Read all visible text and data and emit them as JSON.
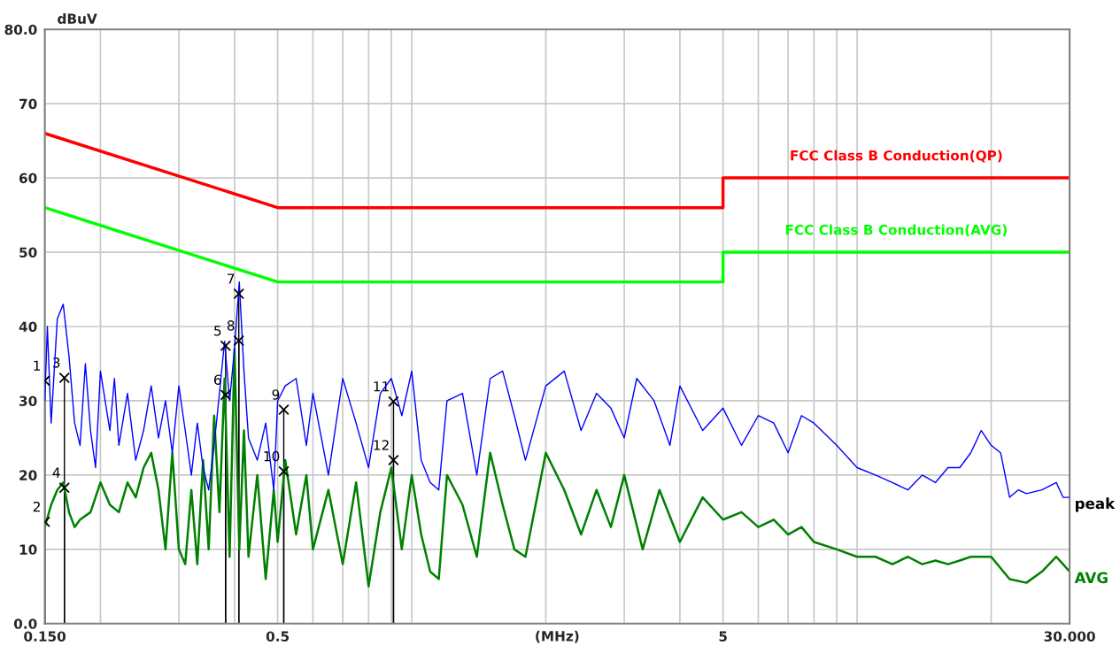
{
  "chart_data": {
    "type": "line",
    "xlabel": "(MHz)",
    "ylabel": "dBuV",
    "log": "x",
    "grid": true,
    "legend": false,
    "marker": "none",
    "xlim": [
      0.15,
      30
    ],
    "ylim": [
      0,
      80
    ],
    "xticks": [
      {
        "value": 0.15,
        "label": "0.150"
      },
      {
        "value": 0.2,
        "label": null
      },
      {
        "value": 0.3,
        "label": null
      },
      {
        "value": 0.4,
        "label": null
      },
      0.5,
      {
        "value": 0.6,
        "label": null
      },
      {
        "value": 0.7,
        "label": null
      },
      {
        "value": 0.8,
        "label": null
      },
      {
        "value": 0.9,
        "label": null
      },
      {
        "value": 1,
        "label": null
      },
      {
        "value": 2,
        "label": null
      },
      {
        "value": 3,
        "label": null
      },
      {
        "value": 4,
        "label": null
      },
      5,
      {
        "value": 6,
        "label": null
      },
      {
        "value": 7,
        "label": null
      },
      {
        "value": 8,
        "label": null
      },
      {
        "value": 9,
        "label": null
      },
      {
        "value": 10,
        "label": null
      },
      {
        "value": 20,
        "label": null
      },
      {
        "value": 30,
        "label": "30.000"
      }
    ],
    "yticks": [
      {
        "value": 0,
        "label": "0.0"
      },
      10,
      20,
      30,
      40,
      50,
      60,
      70,
      {
        "value": 80,
        "label": "80.0"
      }
    ],
    "series": [
      {
        "name": "FCC Class B Conduction(QP)",
        "color": "#ff0000",
        "x": [
          0.15,
          0.5,
          5,
          5,
          30
        ],
        "values": [
          66,
          56,
          56,
          60,
          60
        ]
      },
      {
        "name": "FCC Class B Conduction(AVG)",
        "color": "#00ff00",
        "x": [
          0.15,
          0.5,
          5,
          5,
          30
        ],
        "values": [
          56,
          46,
          46,
          50,
          50
        ]
      },
      {
        "name": "peak",
        "color": "#0000ff",
        "x": [
          0.15,
          0.152,
          0.155,
          0.16,
          0.165,
          0.17,
          0.175,
          0.18,
          0.185,
          0.19,
          0.195,
          0.2,
          0.21,
          0.215,
          0.22,
          0.23,
          0.24,
          0.25,
          0.26,
          0.27,
          0.28,
          0.29,
          0.3,
          0.31,
          0.32,
          0.33,
          0.34,
          0.35,
          0.36,
          0.37,
          0.38,
          0.39,
          0.4,
          0.41,
          0.42,
          0.43,
          0.45,
          0.47,
          0.49,
          0.5,
          0.52,
          0.55,
          0.58,
          0.6,
          0.65,
          0.7,
          0.75,
          0.8,
          0.85,
          0.9,
          0.95,
          1.0,
          1.05,
          1.1,
          1.15,
          1.2,
          1.3,
          1.4,
          1.5,
          1.6,
          1.7,
          1.8,
          2.0,
          2.2,
          2.4,
          2.6,
          2.8,
          3.0,
          3.2,
          3.5,
          3.8,
          4.0,
          4.5,
          5.0,
          5.5,
          6.0,
          6.5,
          7.0,
          7.5,
          8.0,
          9.0,
          10,
          11,
          12,
          13,
          14,
          15,
          16,
          17,
          18,
          19,
          20,
          21,
          22,
          23,
          24,
          26,
          28,
          29,
          30
        ],
        "values": [
          30,
          40,
          27,
          41,
          43,
          36,
          27,
          24,
          35,
          26,
          21,
          34,
          26,
          33,
          24,
          31,
          22,
          26,
          32,
          25,
          30,
          23,
          32,
          26,
          20,
          27,
          21,
          18,
          24,
          31,
          38,
          30,
          37,
          46,
          34,
          25,
          22,
          27,
          18,
          30,
          32,
          33,
          24,
          31,
          20,
          33,
          27,
          21,
          31,
          33,
          28,
          34,
          22,
          19,
          18,
          30,
          31,
          20,
          33,
          34,
          28,
          22,
          32,
          34,
          26,
          31,
          29,
          25,
          33,
          30,
          24,
          32,
          26,
          29,
          24,
          28,
          27,
          23,
          28,
          27,
          24,
          21,
          20,
          19,
          18,
          20,
          19,
          21,
          21,
          23,
          26,
          24,
          23,
          17,
          18,
          17.5,
          18,
          19,
          17,
          17
        ]
      },
      {
        "name": "AVG",
        "color": "#008000",
        "x": [
          0.15,
          0.155,
          0.16,
          0.165,
          0.17,
          0.175,
          0.18,
          0.19,
          0.2,
          0.21,
          0.22,
          0.23,
          0.24,
          0.25,
          0.26,
          0.27,
          0.28,
          0.29,
          0.3,
          0.31,
          0.32,
          0.33,
          0.34,
          0.35,
          0.36,
          0.37,
          0.38,
          0.39,
          0.4,
          0.41,
          0.42,
          0.43,
          0.45,
          0.47,
          0.49,
          0.5,
          0.52,
          0.55,
          0.58,
          0.6,
          0.65,
          0.7,
          0.75,
          0.8,
          0.85,
          0.9,
          0.95,
          1.0,
          1.05,
          1.1,
          1.15,
          1.2,
          1.3,
          1.4,
          1.5,
          1.6,
          1.7,
          1.8,
          2.0,
          2.2,
          2.4,
          2.6,
          2.8,
          3.0,
          3.3,
          3.6,
          4.0,
          4.5,
          5.0,
          5.5,
          6.0,
          6.5,
          7.0,
          7.5,
          8,
          9,
          10,
          11,
          12,
          13,
          14,
          15,
          16,
          17,
          18,
          20,
          22,
          24,
          26,
          28,
          29,
          30
        ],
        "values": [
          13,
          16,
          18,
          19,
          15,
          13,
          14,
          15,
          19,
          16,
          15,
          19,
          17,
          21,
          23,
          18,
          10,
          23,
          10,
          8,
          18,
          8,
          22,
          10,
          28,
          15,
          33,
          9,
          37,
          10,
          26,
          9,
          20,
          6,
          18,
          11,
          22,
          12,
          20,
          10,
          18,
          8,
          19,
          5,
          15,
          21,
          10,
          20,
          12,
          7,
          6,
          20,
          16,
          9,
          23,
          16,
          10,
          9,
          23,
          18,
          12,
          18,
          13,
          20,
          10,
          18,
          11,
          17,
          14,
          15,
          13,
          14,
          12,
          13,
          11,
          10,
          9,
          9,
          8,
          9,
          8,
          8.5,
          8,
          8.5,
          9,
          9,
          6,
          5.5,
          7,
          9,
          8,
          7
        ]
      },
      {
        "type": "lollipop",
        "color": "#000000",
        "marker": "cross",
        "x": [
          0.15,
          0.15,
          0.166,
          0.166,
          0.382,
          0.382,
          0.409,
          0.409,
          0.516,
          0.516,
          0.91,
          0.91
        ],
        "values": [
          32.7,
          13.7,
          33.1,
          18.3,
          37.4,
          30.8,
          44.4,
          38.1,
          28.8,
          20.5,
          29.9,
          22.0
        ]
      }
    ],
    "annotations": [
      {
        "text": "1",
        "x": 0.15,
        "y": 32.7
      },
      {
        "text": "2",
        "x": 0.15,
        "y": 13.7
      },
      {
        "text": "3",
        "x": 0.166,
        "y": 33.1
      },
      {
        "text": "4",
        "x": 0.166,
        "y": 18.3
      },
      {
        "text": "5",
        "x": 0.382,
        "y": 37.4
      },
      {
        "text": "6",
        "x": 0.382,
        "y": 30.8
      },
      {
        "text": "7",
        "x": 0.409,
        "y": 44.4
      },
      {
        "text": "8",
        "x": 0.409,
        "y": 38.1
      },
      {
        "text": "9",
        "x": 0.516,
        "y": 28.8
      },
      {
        "text": "10",
        "x": 0.516,
        "y": 20.5
      },
      {
        "text": "11",
        "x": 0.91,
        "y": 29.9
      },
      {
        "text": "12",
        "x": 0.91,
        "y": 22.0
      }
    ]
  }
}
